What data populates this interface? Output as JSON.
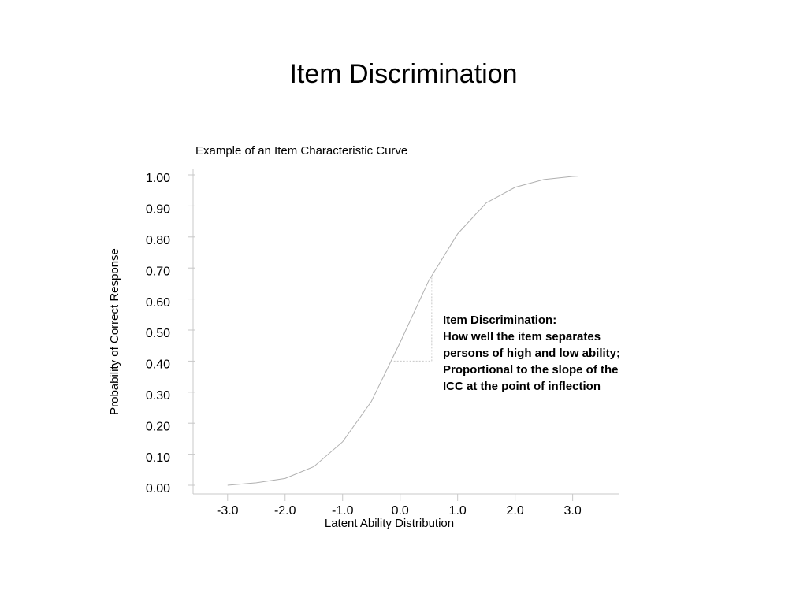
{
  "slide_title": "Item Discrimination",
  "chart_data": {
    "type": "line",
    "title": "Example of an Item Characteristic Curve",
    "x_label": "Latent Ability Distribution",
    "y_label": "Probability of Correct Response",
    "x": [
      -3.0,
      -2.5,
      -2.0,
      -1.5,
      -1.0,
      -0.5,
      0.0,
      0.5,
      1.0,
      1.5,
      2.0,
      2.5,
      3.0,
      3.1
    ],
    "series": [
      {
        "name": "Item Characteristic Curve",
        "color": "#b0b0b0",
        "values": [
          0.0,
          0.008,
          0.022,
          0.06,
          0.14,
          0.27,
          0.46,
          0.66,
          0.81,
          0.91,
          0.96,
          0.985,
          0.995,
          0.996
        ]
      }
    ],
    "slope_guide": {
      "x": [
        -0.11,
        0.55
      ],
      "y": [
        0.4,
        0.675
      ],
      "color": "#c8c8c8"
    },
    "xlim": [
      -3.6,
      3.8
    ],
    "ylim": [
      0,
      1
    ],
    "xticks": [
      {
        "value": -3,
        "label": "-3.0"
      },
      {
        "value": -2,
        "label": "-2.0"
      },
      {
        "value": -1,
        "label": "-1.0"
      },
      {
        "value": 0,
        "label": "0.0"
      },
      {
        "value": 1,
        "label": "1.0"
      },
      {
        "value": 2,
        "label": "2.0"
      },
      {
        "value": 3,
        "label": "3.0"
      }
    ],
    "yticks": [
      {
        "value": 0,
        "label": "0.00"
      },
      {
        "value": 0.1,
        "label": "0.10"
      },
      {
        "value": 0.2,
        "label": "0.20"
      },
      {
        "value": 0.3,
        "label": "0.30"
      },
      {
        "value": 0.4,
        "label": "0.40"
      },
      {
        "value": 0.5,
        "label": "0.50"
      },
      {
        "value": 0.6,
        "label": "0.60"
      },
      {
        "value": 0.7,
        "label": "0.70"
      },
      {
        "value": 0.8,
        "label": "0.80"
      },
      {
        "value": 0.9,
        "label": "0.90"
      },
      {
        "value": 1,
        "label": "1.00"
      }
    ],
    "annotation": [
      "Item Discrimination:",
      "How well the item separates",
      "persons of high and low ability;",
      "Proportional to the slope of the",
      "ICC at the point of inflection"
    ]
  }
}
